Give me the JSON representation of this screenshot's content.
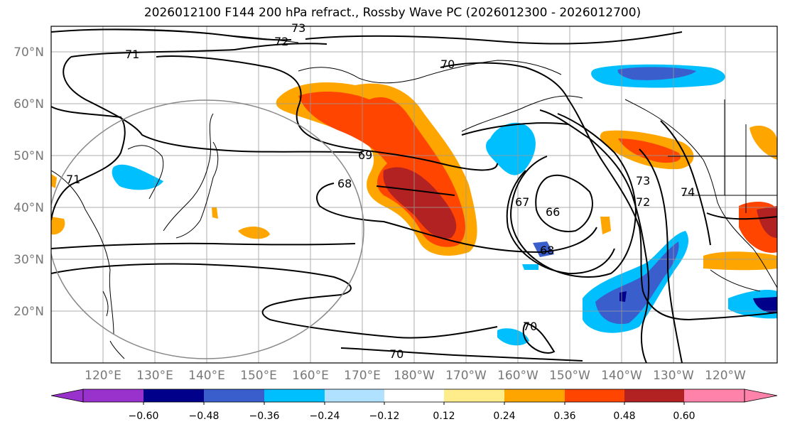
{
  "title": "2026012100 F144 200 hPa refract., Rossby Wave PC (2026012300 - 2026012700)",
  "lat_labels": [
    "70°N",
    "60°N",
    "50°N",
    "40°N",
    "30°N",
    "20°N"
  ],
  "lon_labels": [
    "120°E",
    "130°E",
    "140°E",
    "150°E",
    "160°E",
    "170°E",
    "180°W",
    "170°W",
    "160°W",
    "150°W",
    "140°W",
    "130°W",
    "120°W"
  ],
  "contour_labels": [
    "73",
    "72",
    "71",
    "70",
    "69",
    "68",
    "71",
    "73",
    "72",
    "74",
    "67",
    "66",
    "68",
    "70",
    "70"
  ],
  "colorbar": {
    "ticks": [
      "−0.60",
      "−0.48",
      "−0.36",
      "−0.24",
      "−0.12",
      "0.12",
      "0.24",
      "0.36",
      "0.48",
      "0.60"
    ],
    "colors": [
      "#9932cc",
      "#00008b",
      "#3a5fcd",
      "#00bfff",
      "#b0e2ff",
      "#ffffff",
      "#ffec8b",
      "#ffa500",
      "#ff4500",
      "#b22222",
      "#ff82ab"
    ]
  },
  "colors": {
    "pos_low": "#ffa500",
    "pos_mid": "#ff4500",
    "pos_high": "#b22222",
    "neg_low": "#00bfff",
    "neg_mid": "#3a5fcd",
    "neg_high": "#00008b"
  }
}
